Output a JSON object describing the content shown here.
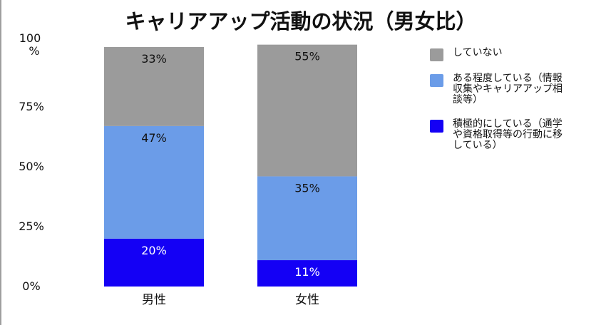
{
  "chart_data": {
    "type": "bar",
    "stacked": true,
    "percent_stacked": true,
    "title": "キャリアアップ活動の状況（男女比）",
    "xlabel": "",
    "ylabel": "",
    "categories": [
      "男性",
      "女性"
    ],
    "yticks": [
      "0%",
      "25%",
      "50%",
      "75%",
      "100%"
    ],
    "ylim": [
      0,
      100
    ],
    "grid": false,
    "legend_position": "right",
    "series": [
      {
        "name": "積極的にしている（通学や資格取得等の行動に移している）",
        "legend_lines": [
          "積極的にしている（通学",
          "や資格取得等の行動に移",
          "している）"
        ],
        "color": "#1400f5",
        "values": [
          20,
          11
        ],
        "labels": [
          "20%",
          "11%"
        ]
      },
      {
        "name": "ある程度している（情報収集やキャリアアップ相談等）",
        "legend_lines": [
          "ある程度している（情報",
          "収集やキャリアアップ相",
          "談等）"
        ],
        "color": "#6b9ce8",
        "values": [
          47,
          35
        ],
        "labels": [
          "47%",
          "35%"
        ]
      },
      {
        "name": "していない",
        "legend_lines": [
          "していない"
        ],
        "color": "#9b9b9b",
        "values": [
          33,
          55
        ],
        "labels": [
          "33%",
          "55%"
        ]
      }
    ]
  }
}
